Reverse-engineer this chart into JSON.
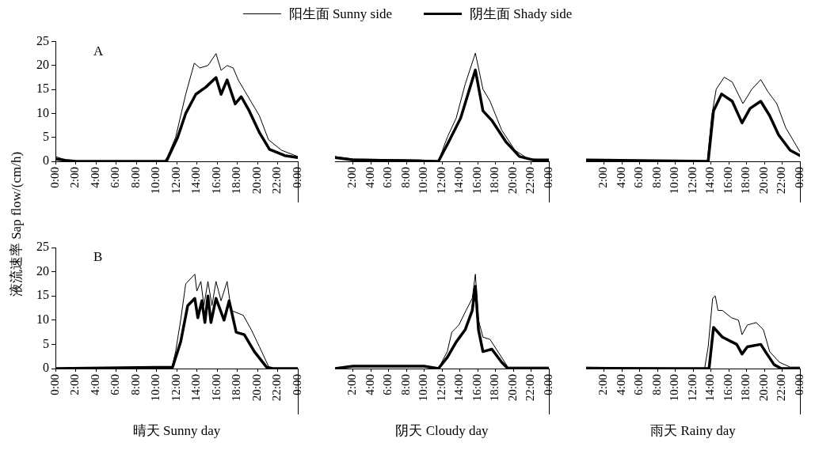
{
  "chart_data": [
    {
      "type": "line",
      "title": "A",
      "ylabel": "液流速率 Sap flow/(cm/h)",
      "legend": "top",
      "marker": "none",
      "line_style": "solid",
      "grid": false,
      "xlim": [
        0,
        24
      ],
      "ylim": [
        0,
        25
      ],
      "yticks": [
        0,
        5,
        10,
        15,
        20,
        25
      ],
      "xticks": [
        {
          "value": 0,
          "label": "0:00"
        },
        {
          "value": 2,
          "label": "2:00"
        },
        {
          "value": 4,
          "label": "4:00"
        },
        {
          "value": 6,
          "label": "6:00"
        },
        {
          "value": 8,
          "label": "8:00"
        },
        {
          "value": 10,
          "label": "10:00"
        },
        {
          "value": 12,
          "label": "12:00"
        },
        {
          "value": 14,
          "label": "14:00"
        },
        {
          "value": 16,
          "label": "16:00"
        },
        {
          "value": 18,
          "label": "18:00"
        },
        {
          "value": 20,
          "label": "20:00"
        },
        {
          "value": 22,
          "label": "22:00"
        },
        {
          "value": 24,
          "label": "0:00"
        }
      ],
      "series": [
        {
          "name": "阳生面 Sunny side",
          "color": "#000000",
          "x": [
            0,
            1,
            2,
            10.8,
            11.1,
            11.9,
            12.9,
            13.75,
            14.3,
            15.1,
            15.9,
            16.4,
            17,
            17.6,
            18.1,
            18.8,
            20.2,
            21.1,
            22.4,
            24
          ],
          "values": [
            1,
            0.3,
            0,
            0,
            1,
            5,
            14,
            20.5,
            19.5,
            20,
            22.5,
            19,
            20,
            19.5,
            17,
            14.5,
            9.5,
            4.5,
            2.3,
            1
          ]
        },
        {
          "name": "阴生面 Shady side",
          "color": "#000000",
          "x": [
            0,
            1,
            2,
            11,
            11.1,
            12.1,
            12.9,
            13.9,
            14.9,
            15.9,
            16.4,
            17,
            17.8,
            18.4,
            19.2,
            20.2,
            21.2,
            22.7,
            24
          ],
          "values": [
            0.5,
            0.2,
            0,
            0,
            0.5,
            5,
            10,
            14,
            15.5,
            17.5,
            14,
            17,
            12,
            13.5,
            10.5,
            6,
            2.5,
            1.2,
            0.8
          ]
        }
      ]
    },
    {
      "type": "line",
      "tick_labels": "x",
      "marker": "none",
      "line_style": "solid",
      "grid": false,
      "xlim": [
        0,
        24
      ],
      "ylim": [
        0,
        25
      ],
      "xticks": [
        {
          "value": 2,
          "label": "2:00"
        },
        {
          "value": 4,
          "label": "4:00"
        },
        {
          "value": 6,
          "label": "6:00"
        },
        {
          "value": 8,
          "label": "8:00"
        },
        {
          "value": 10,
          "label": "10:00"
        },
        {
          "value": 12,
          "label": "12:00"
        },
        {
          "value": 14,
          "label": "14:00"
        },
        {
          "value": 16,
          "label": "16:00"
        },
        {
          "value": 18,
          "label": "18:00"
        },
        {
          "value": 20,
          "label": "20:00"
        },
        {
          "value": 22,
          "label": "22:00"
        },
        {
          "value": 24,
          "label": "0:00"
        }
      ],
      "series": [
        {
          "color": "#000000",
          "x": [
            0,
            2,
            9.6,
            11.6,
            12.6,
            13.6,
            14.6,
            15.75,
            16.6,
            17.4,
            18.7,
            20.2,
            21.7,
            24
          ],
          "values": [
            1,
            0.5,
            0.3,
            0,
            5,
            9,
            16,
            22.5,
            15,
            12.5,
            6.5,
            2.3,
            0.5,
            0.3
          ]
        },
        {
          "color": "#000000",
          "x": [
            0,
            2,
            11.6,
            12.6,
            14.1,
            15.75,
            16.6,
            17.6,
            19.2,
            20.7,
            22.2,
            24
          ],
          "values": [
            0.8,
            0.3,
            0,
            3.5,
            9,
            19,
            10.5,
            8.5,
            4,
            1,
            0.3,
            0.3
          ]
        }
      ]
    },
    {
      "type": "line",
      "tick_labels": "x",
      "marker": "none",
      "line_style": "solid",
      "grid": false,
      "xlim": [
        0,
        24
      ],
      "ylim": [
        0,
        25
      ],
      "xticks": [
        {
          "value": 2,
          "label": "2:00"
        },
        {
          "value": 4,
          "label": "4:00"
        },
        {
          "value": 6,
          "label": "6:00"
        },
        {
          "value": 8,
          "label": "8:00"
        },
        {
          "value": 10,
          "label": "10:00"
        },
        {
          "value": 12,
          "label": "12:00"
        },
        {
          "value": 14,
          "label": "14:00"
        },
        {
          "value": 16,
          "label": "16:00"
        },
        {
          "value": 18,
          "label": "18:00"
        },
        {
          "value": 20,
          "label": "20:00"
        },
        {
          "value": 22,
          "label": "22:00"
        },
        {
          "value": 24,
          "label": "0:00"
        }
      ],
      "series": [
        {
          "color": "#000000",
          "x": [
            0,
            13.6,
            14.1,
            14.6,
            15.5,
            16.4,
            17.6,
            18.6,
            19.6,
            20.4,
            21.4,
            22.4,
            23.9,
            24
          ],
          "values": [
            0.3,
            0,
            9.5,
            15,
            17.5,
            16.5,
            12,
            15,
            17,
            14.5,
            12,
            7,
            2.3,
            2
          ]
        },
        {
          "color": "#000000",
          "x": [
            0,
            13.7,
            14.3,
            15.2,
            16.4,
            17.5,
            18.4,
            19.6,
            20.6,
            21.6,
            22.9,
            24
          ],
          "values": [
            0.3,
            0,
            10.5,
            14,
            12.5,
            8,
            11,
            12.5,
            9.5,
            5.5,
            2.3,
            1.2
          ]
        }
      ]
    },
    {
      "type": "line",
      "title": "B",
      "xlabel": "晴天 Sunny day",
      "marker": "none",
      "line_style": "solid",
      "grid": false,
      "xlim": [
        0,
        24
      ],
      "ylim": [
        0,
        25
      ],
      "yticks": [
        0,
        5,
        10,
        15,
        20,
        25
      ],
      "xticks": [
        {
          "value": 0,
          "label": "0:00"
        },
        {
          "value": 2,
          "label": "2:00"
        },
        {
          "value": 4,
          "label": "4:00"
        },
        {
          "value": 6,
          "label": "6:00"
        },
        {
          "value": 8,
          "label": "8:00"
        },
        {
          "value": 10,
          "label": "10:00"
        },
        {
          "value": 12,
          "label": "12:00"
        },
        {
          "value": 14,
          "label": "14:00"
        },
        {
          "value": 16,
          "label": "16:00"
        },
        {
          "value": 18,
          "label": "18:00"
        },
        {
          "value": 20,
          "label": "20:00"
        },
        {
          "value": 22,
          "label": "22:00"
        },
        {
          "value": 24,
          "label": "0:00"
        }
      ],
      "series": [
        {
          "color": "#000000",
          "x": [
            0,
            7,
            8,
            9.3,
            11.5,
            11.9,
            12.4,
            12.9,
            13.8,
            14,
            14.4,
            14.7,
            15.1,
            15.5,
            15.9,
            16.4,
            17,
            17.4,
            18.6,
            19.4,
            20.2,
            21.2,
            24
          ],
          "values": [
            0,
            0,
            0.3,
            0.3,
            0,
            3.5,
            10,
            17.5,
            19.5,
            16,
            18,
            13,
            18,
            13,
            18,
            14,
            18,
            12,
            11,
            8,
            4.5,
            0,
            0
          ]
        },
        {
          "color": "#000000",
          "x": [
            0,
            11.6,
            12.4,
            13.1,
            13.8,
            14.1,
            14.5,
            14.8,
            15.1,
            15.4,
            15.9,
            16.7,
            17.2,
            17.9,
            18.7,
            19.7,
            20.9,
            21.5,
            24
          ],
          "values": [
            0,
            0.3,
            5.5,
            13,
            14.5,
            10.5,
            14,
            9.5,
            15,
            9.5,
            14.5,
            10,
            14,
            7.5,
            7,
            3.5,
            0.3,
            0,
            0
          ]
        }
      ]
    },
    {
      "type": "line",
      "xlabel": "阴天 Cloudy day",
      "tick_labels": "x",
      "marker": "none",
      "line_style": "solid",
      "grid": false,
      "xlim": [
        0,
        24
      ],
      "ylim": [
        0,
        25
      ],
      "xticks": [
        {
          "value": 2,
          "label": "2:00"
        },
        {
          "value": 4,
          "label": "4:00"
        },
        {
          "value": 6,
          "label": "6:00"
        },
        {
          "value": 8,
          "label": "8:00"
        },
        {
          "value": 10,
          "label": "10:00"
        },
        {
          "value": 12,
          "label": "12:00"
        },
        {
          "value": 14,
          "label": "14:00"
        },
        {
          "value": 16,
          "label": "16:00"
        },
        {
          "value": 18,
          "label": "18:00"
        },
        {
          "value": 20,
          "label": "20:00"
        },
        {
          "value": 22,
          "label": "22:00"
        },
        {
          "value": 24,
          "label": "0:00"
        }
      ],
      "series": [
        {
          "color": "#000000",
          "x": [
            0,
            2,
            10,
            11.6,
            12.6,
            13.1,
            13.9,
            14.7,
            15.4,
            15.75,
            16.1,
            16.6,
            17.4,
            18.7,
            19.4,
            24
          ],
          "values": [
            0,
            0.5,
            0.5,
            0,
            3.5,
            7.5,
            9,
            12,
            14.5,
            19.5,
            10,
            6.5,
            6,
            2.3,
            0.3,
            0.3
          ]
        },
        {
          "color": "#000000",
          "x": [
            0,
            2,
            10,
            11.6,
            12.6,
            13.6,
            14.6,
            15.4,
            15.75,
            16.1,
            16.6,
            17.6,
            18.7,
            19.4,
            24
          ],
          "values": [
            0,
            0.5,
            0.5,
            0,
            2.3,
            5.5,
            8,
            12,
            17,
            8,
            3.5,
            4,
            1.3,
            0,
            0
          ]
        }
      ]
    },
    {
      "type": "line",
      "xlabel": "雨天 Rainy day",
      "tick_labels": "x",
      "marker": "none",
      "line_style": "solid",
      "grid": false,
      "xlim": [
        0,
        24
      ],
      "ylim": [
        0,
        25
      ],
      "xticks": [
        {
          "value": 2,
          "label": "2:00"
        },
        {
          "value": 4,
          "label": "4:00"
        },
        {
          "value": 6,
          "label": "6:00"
        },
        {
          "value": 8,
          "label": "8:00"
        },
        {
          "value": 10,
          "label": "10:00"
        },
        {
          "value": 12,
          "label": "12:00"
        },
        {
          "value": 14,
          "label": "14:00"
        },
        {
          "value": 16,
          "label": "16:00"
        },
        {
          "value": 18,
          "label": "18:00"
        },
        {
          "value": 20,
          "label": "20:00"
        },
        {
          "value": 22,
          "label": "22:00"
        },
        {
          "value": 24,
          "label": "0:00"
        }
      ],
      "series": [
        {
          "color": "#000000",
          "x": [
            0,
            13.3,
            13.7,
            14.2,
            14.5,
            14.8,
            15.3,
            16.3,
            17.1,
            17.5,
            18.1,
            19.1,
            19.9,
            20.6,
            21.7,
            22.9,
            24
          ],
          "values": [
            0.3,
            0,
            4.5,
            14.5,
            15,
            12,
            12,
            10.5,
            10,
            7,
            9,
            9.5,
            8,
            3.5,
            1.3,
            0.3,
            0.3
          ]
        },
        {
          "color": "#000000",
          "x": [
            0,
            13.8,
            14.3,
            15.3,
            16.9,
            17.5,
            18.1,
            19.6,
            20.3,
            21.1,
            21.9,
            24
          ],
          "values": [
            0,
            0,
            8.5,
            6.5,
            5,
            3,
            4.5,
            5,
            3,
            0.8,
            0,
            0
          ]
        }
      ]
    }
  ]
}
